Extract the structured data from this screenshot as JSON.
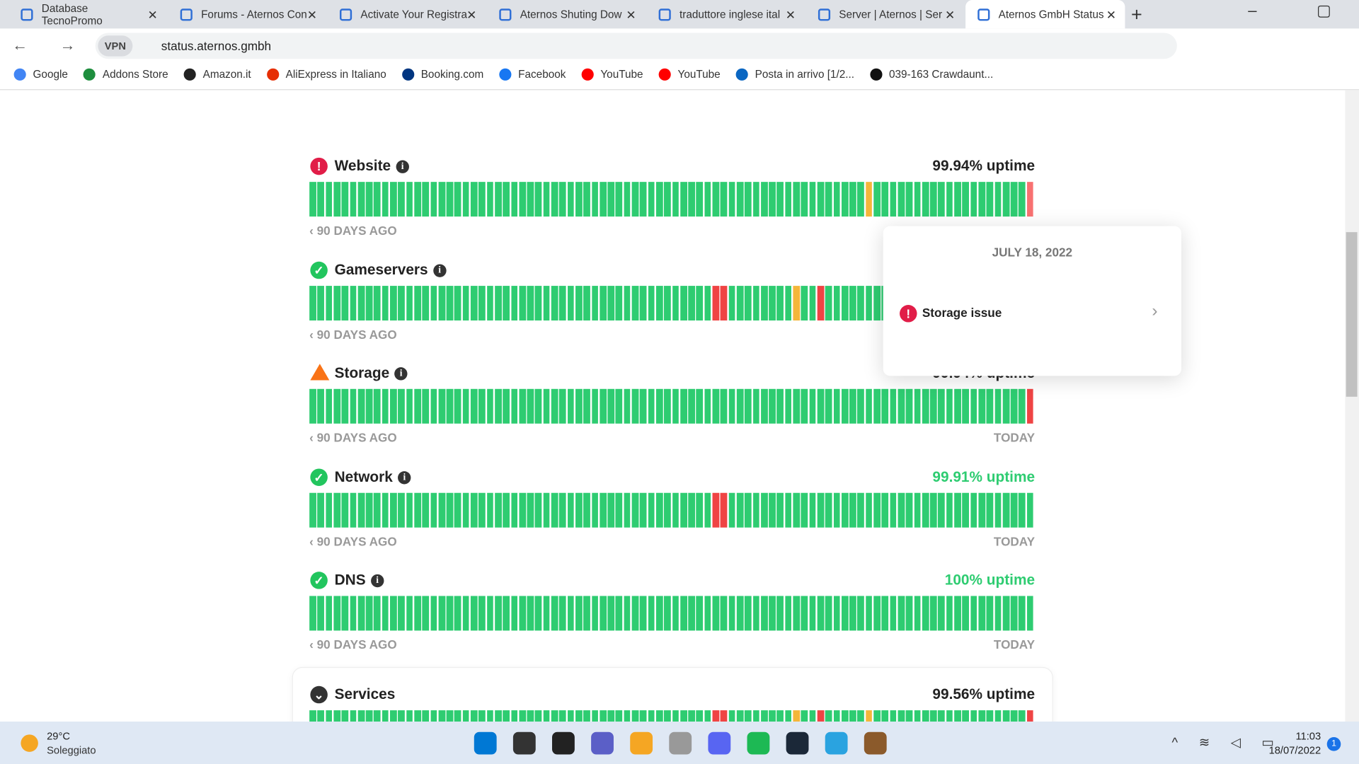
{
  "browser": {
    "tabs": [
      "Database TecnoPromo",
      "Forums - Aternos Con",
      "Activate Your Registra",
      "Aternos Shuting Dow",
      "traduttore inglese ital",
      "Server | Aternos | Ser",
      "Aternos GmbH Status"
    ],
    "url": "status.aternos.gmbh",
    "bookmarks": [
      "Google",
      "Addons Store",
      "Amazon.it",
      "AliExpress in Italiano",
      "Booking.com",
      "Facebook",
      "YouTube",
      "YouTube",
      "Posta in arrivo [1/2...",
      "039-163 Crawdaunt..."
    ]
  },
  "status_page": {
    "day_count": 90,
    "start_label": "90 DAYS AGO",
    "end_label": "TODAY",
    "ok_color": "#2ecc71",
    "components": [
      {
        "name": "Website",
        "status": "major",
        "uptime": "99.94% uptime",
        "uptime_color": "#222",
        "outages": [
          {
            "day": 69,
            "color": "#f4b63a"
          },
          {
            "day": 89,
            "color": "#f87171"
          }
        ]
      },
      {
        "name": "Gameservers",
        "status": "ok",
        "outages": [
          {
            "day": 50,
            "color": "#ef4444"
          },
          {
            "day": 51,
            "color": "#ef4444"
          },
          {
            "day": 60,
            "color": "#f4b63a"
          },
          {
            "day": 63,
            "color": "#ef4444"
          }
        ]
      },
      {
        "name": "Storage",
        "status": "warning",
        "uptime": "99.94% uptime",
        "uptime_color": "#222",
        "outages": [
          {
            "day": 89,
            "color": "#ef4444"
          }
        ]
      },
      {
        "name": "Network",
        "status": "ok",
        "uptime": "99.91% uptime",
        "uptime_color": "#2ecc71",
        "outages": [
          {
            "day": 50,
            "color": "#ef4444"
          },
          {
            "day": 51,
            "color": "#ef4444"
          }
        ]
      },
      {
        "name": "DNS",
        "status": "ok",
        "uptime": "100% uptime",
        "uptime_color": "#2ecc71",
        "outages": []
      },
      {
        "name": "Services",
        "status": "group",
        "uptime": "99.56% uptime",
        "uptime_color": "#222",
        "outages": [
          {
            "day": 50,
            "color": "#ef4444"
          },
          {
            "day": 51,
            "color": "#ef4444"
          },
          {
            "day": 60,
            "color": "#f4b63a"
          },
          {
            "day": 63,
            "color": "#ef4444"
          },
          {
            "day": 69,
            "color": "#f4b63a"
          },
          {
            "day": 89,
            "color": "#ef4444"
          }
        ]
      }
    ],
    "popup": {
      "date": "JULY 18, 2022",
      "incident": "Storage issue"
    }
  },
  "taskbar": {
    "temperature": "29°C",
    "weather": "Soleggiato",
    "time": "11:03",
    "date": "18/07/2022",
    "notifications": "1"
  }
}
